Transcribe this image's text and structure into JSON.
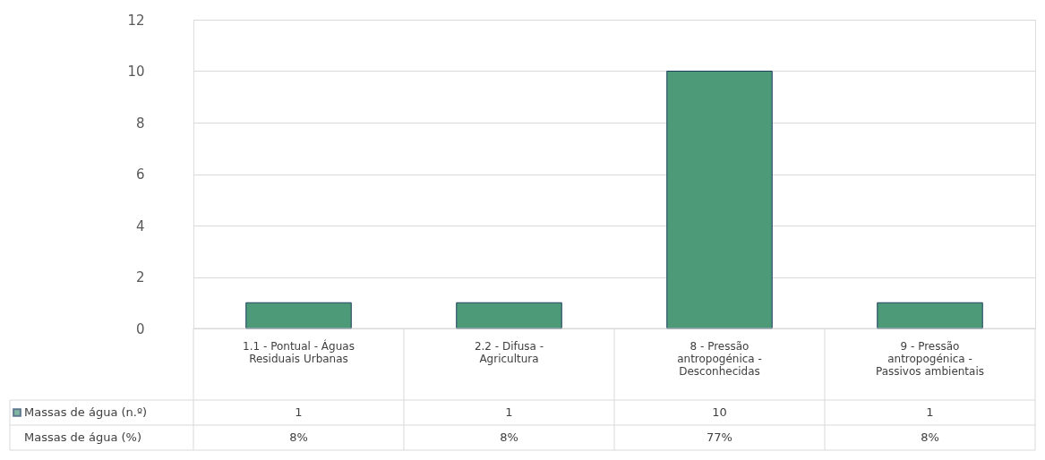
{
  "chart_data": {
    "type": "bar",
    "categories": [
      "1.1 - Pontual - Águas Residuais Urbanas",
      "2.2 - Difusa - Agricultura",
      "8 - Pressão antropogénica - Desconhecidas",
      "9 - Pressão antropogénica - Passivos ambientais"
    ],
    "series": [
      {
        "name": "Massas de água (n.º)",
        "color": "#4c9a78",
        "values": [
          1,
          1,
          10,
          1
        ]
      }
    ],
    "ylim": [
      0,
      12
    ],
    "yticks": [
      0,
      2,
      4,
      6,
      8,
      10,
      12
    ],
    "grid": "y",
    "data_labels": true,
    "annotations": [
      "Massas de água (%)",
      "8%",
      "8%",
      "77%",
      "8%"
    ]
  }
}
